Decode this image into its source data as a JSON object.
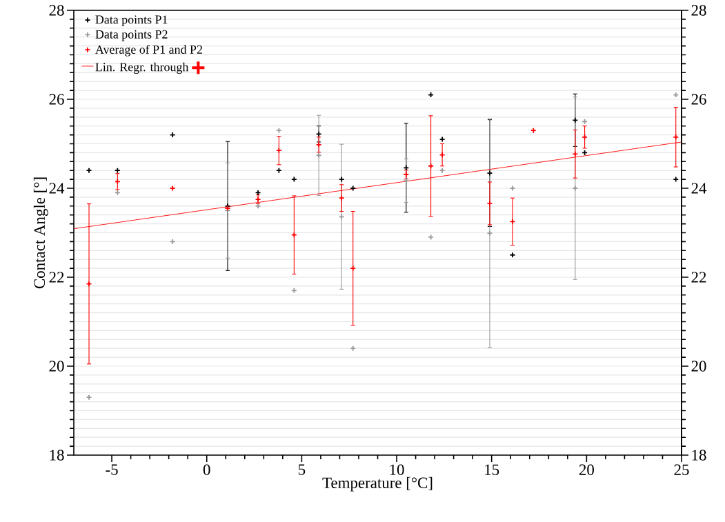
{
  "chart_data": {
    "type": "scatter",
    "xlabel": "Temperature [°C]",
    "ylabel": "Contact Angle [°]",
    "x": [
      -6.2,
      -4.7,
      -1.8,
      1.1,
      2.7,
      3.8,
      4.6,
      5.9,
      7.1,
      7.7,
      10.5,
      11.8,
      12.4,
      14.9,
      16.1,
      17.2,
      19.4,
      19.9,
      24.7
    ],
    "series": [
      {
        "name": "Data points P1",
        "color": "#000000",
        "values": [
          24.4,
          24.4,
          25.2,
          23.6,
          23.9,
          24.4,
          24.2,
          25.22,
          24.2,
          24.0,
          24.46,
          26.1,
          25.1,
          24.34,
          22.5,
          null,
          25.53,
          24.8,
          24.2
        ],
        "errors": [
          null,
          null,
          null,
          1.45,
          null,
          null,
          null,
          0.18,
          null,
          null,
          1.0,
          null,
          null,
          1.2,
          null,
          null,
          0.59,
          null,
          null
        ]
      },
      {
        "name": "Data points P2",
        "color": "#999999",
        "values": [
          19.3,
          23.9,
          22.8,
          23.5,
          23.6,
          25.3,
          21.7,
          24.74,
          23.36,
          20.4,
          24.17,
          22.9,
          24.4,
          22.99,
          24.0,
          null,
          24.0,
          25.5,
          26.1
        ],
        "errors": [
          null,
          null,
          null,
          1.07,
          null,
          null,
          null,
          0.9,
          1.63,
          null,
          0.49,
          null,
          null,
          2.57,
          null,
          null,
          2.05,
          null,
          null
        ]
      },
      {
        "name": "Average of P1 and P2",
        "color": "#ff0000",
        "values": [
          21.85,
          24.15,
          24.0,
          23.55,
          23.75,
          24.85,
          22.95,
          24.98,
          23.78,
          22.2,
          24.31,
          24.5,
          24.75,
          23.66,
          23.25,
          25.3,
          24.77,
          25.15,
          25.15
        ],
        "errors": [
          1.8,
          0.18,
          null,
          null,
          0.1,
          0.32,
          0.88,
          0.17,
          0.3,
          1.28,
          0.1,
          1.13,
          0.25,
          0.48,
          0.53,
          null,
          0.54,
          0.25,
          0.67
        ]
      },
      {
        "name": "Lin. Regr. through",
        "type": "line",
        "marker": "none",
        "color": "#ff0000",
        "x": [
          -7,
          25
        ],
        "values": [
          23.09,
          25.04
        ]
      }
    ],
    "xlim": [
      -7,
      25
    ],
    "xticks": [
      -5,
      0,
      5,
      10,
      15,
      20,
      25
    ],
    "ylim": [
      18,
      28
    ],
    "yticks": [
      18,
      20,
      22,
      24,
      26,
      28
    ],
    "y2lim": [
      18,
      28
    ],
    "y2ticks": [
      18,
      20,
      22,
      24,
      26,
      28
    ],
    "grid": "y",
    "legend": "top left",
    "marker": "cross"
  }
}
